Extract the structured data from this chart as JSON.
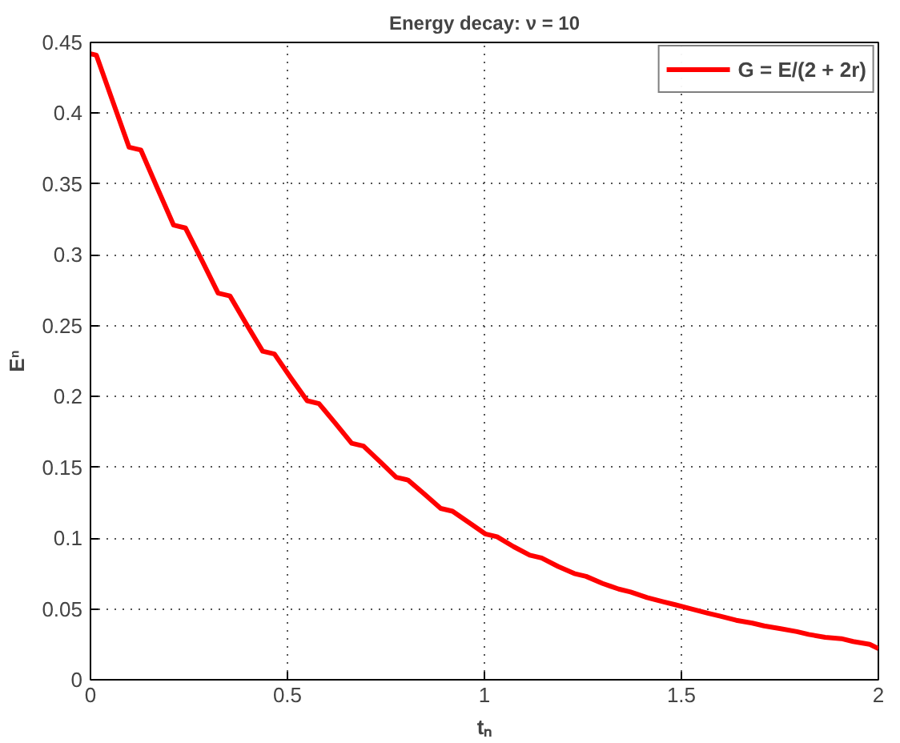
{
  "chart_data": {
    "type": "line",
    "title": "Energy decay: ν = 10",
    "xlabel": "tₙ",
    "ylabel": "Eⁿ",
    "xlim": [
      0,
      2
    ],
    "ylim": [
      0,
      0.45
    ],
    "xticks": [
      0,
      0.5,
      1,
      1.5,
      2
    ],
    "yticks": [
      0,
      0.05,
      0.1,
      0.15,
      0.2,
      0.25,
      0.3,
      0.35,
      0.4,
      0.45
    ],
    "grid": true,
    "legend": "top right",
    "line_style": "solid",
    "series": [
      {
        "name": "G = E/(2 + 2r)",
        "color": "#ff0000",
        "x": [
          0,
          0.015,
          0.057,
          0.098,
          0.128,
          0.17,
          0.211,
          0.241,
          0.283,
          0.324,
          0.354,
          0.396,
          0.437,
          0.467,
          0.509,
          0.55,
          0.58,
          0.622,
          0.663,
          0.693,
          0.735,
          0.776,
          0.806,
          0.848,
          0.889,
          0.919,
          0.961,
          1.002,
          1.032,
          1.074,
          1.115,
          1.145,
          1.187,
          1.228,
          1.258,
          1.3,
          1.341,
          1.371,
          1.413,
          1.454,
          1.484,
          1.526,
          1.567,
          1.597,
          1.639,
          1.68,
          1.71,
          1.752,
          1.793,
          1.823,
          1.865,
          1.906,
          1.936,
          1.978,
          2.0
        ],
        "values": [
          0.442,
          0.441,
          0.408,
          0.376,
          0.374,
          0.347,
          0.321,
          0.319,
          0.296,
          0.273,
          0.271,
          0.251,
          0.232,
          0.23,
          0.213,
          0.197,
          0.195,
          0.181,
          0.167,
          0.165,
          0.154,
          0.143,
          0.141,
          0.131,
          0.121,
          0.119,
          0.111,
          0.103,
          0.101,
          0.094,
          0.088,
          0.086,
          0.08,
          0.075,
          0.073,
          0.068,
          0.064,
          0.062,
          0.058,
          0.055,
          0.053,
          0.05,
          0.047,
          0.045,
          0.042,
          0.04,
          0.038,
          0.036,
          0.034,
          0.032,
          0.03,
          0.029,
          0.027,
          0.025,
          0.022
        ]
      }
    ]
  }
}
